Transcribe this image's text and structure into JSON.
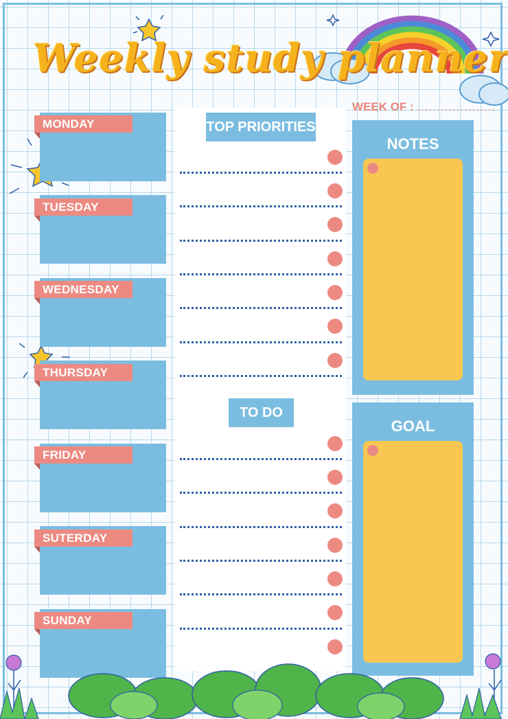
{
  "title": "Weekly study planner",
  "week_of": {
    "label": "WEEK OF :",
    "blank": "...................."
  },
  "days": [
    "MONDAY",
    "TUESDAY",
    "WEDNESDAY",
    "THURSDAY",
    "FRIDAY",
    "SUTERDAY",
    "SUNDAY"
  ],
  "sections": {
    "top_priorities": "TOP PRIORITIES",
    "to_do": "TO DO"
  },
  "panels": {
    "notes": "NOTES",
    "goal": "GOAL"
  },
  "colors": {
    "accent_blue": "#7bbde0",
    "tag_pink": "#ec8a82",
    "card_yellow": "#f7c752",
    "title_orange": "#f6b21c",
    "line_blue": "#2f5ea8"
  }
}
